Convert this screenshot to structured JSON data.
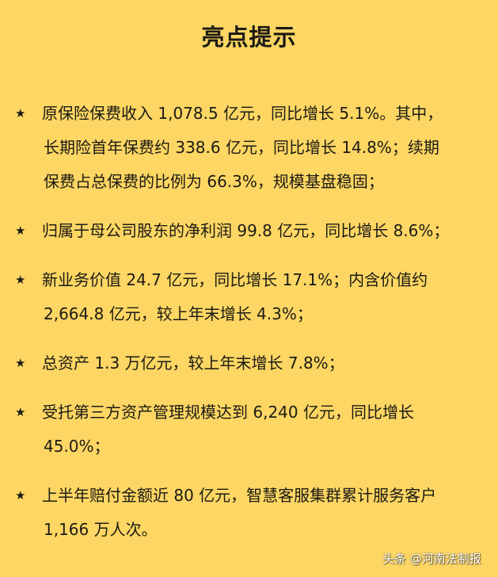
{
  "title": "亮点提示",
  "bullet_icon": "star-icon",
  "items": [
    {
      "lines": [
        "原保险保费收入 1,078.5 亿元，同比增长 5.1%。其中，",
        "长期险首年保费约 338.6 亿元，同比增长 14.8%；续期",
        "保费占总保费的比例为 66.3%，规模基盘稳固；"
      ]
    },
    {
      "lines": [
        "归属于母公司股东的净利润 99.8 亿元，同比增长 8.6%；"
      ]
    },
    {
      "lines": [
        "新业务价值 24.7 亿元，同比增长 17.1%；内含价值约",
        "2,664.8 亿元，较上年末增长 4.3%；"
      ]
    },
    {
      "lines": [
        "总资产 1.3 万亿元，较上年末增长 7.8%；"
      ]
    },
    {
      "lines": [
        "受托第三方资产管理规模达到 6,240 亿元，同比增长",
        "45.0%；"
      ]
    },
    {
      "lines": [
        "上半年赔付金额近 80 亿元，智慧客服集群累计服务客户",
        "1,166 万人次。"
      ]
    }
  ],
  "watermark": "头条 @河南法制报",
  "colors": {
    "background": "#fdd663",
    "text": "#1c1a14"
  }
}
